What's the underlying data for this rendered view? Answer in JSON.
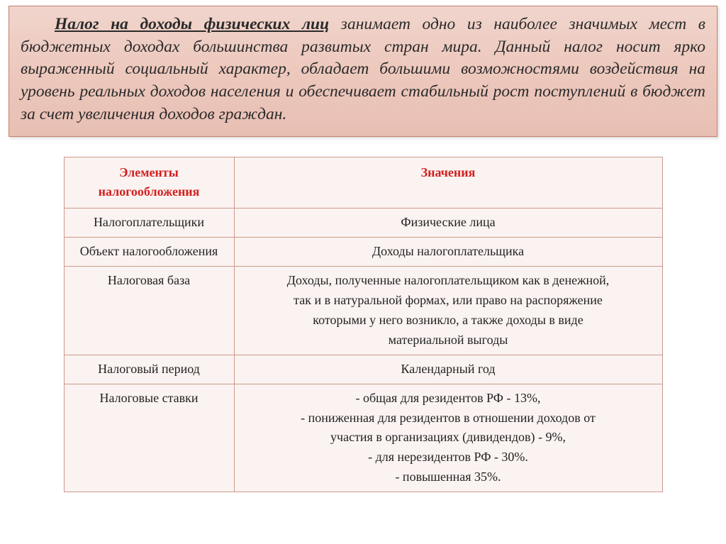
{
  "intro": {
    "lead": "Налог на доходы физических лиц",
    "rest": " занимает одно из наиболее значимых мест в бюджетных доходах большинства развитых стран мира. Данный налог носит ярко выраженный социальный характер, обладает большими возможностями воздействия на уровень реальных доходов населения и обеспечивает стабильный рост поступлений в бюджет за счет увеличения доходов граждан."
  },
  "table": {
    "header_left": "Элементы\nналогообложения",
    "header_right": "Значения",
    "rows": [
      {
        "left": "Налогоплательщики",
        "right": "Физические лица"
      },
      {
        "left": "Объект налогообложения",
        "right": "Доходы налогоплательщика"
      },
      {
        "left": "Налоговая база",
        "right": "Доходы, полученные налогоплательщиком как в денежной,\nтак и в натуральной формах, или право на распоряжение\nкоторыми у него возникло, а также доходы в виде\nматериальной выгоды"
      },
      {
        "left": "Налоговый период",
        "right": "Календарный год"
      },
      {
        "left": "Налоговые ставки",
        "right": "- общая для резидентов РФ - 13%,\n- пониженная для резидентов в отношении доходов от\nучастия в организациях (дивидендов) - 9%,\n- для нерезидентов РФ - 30%.\n- повышенная 35%."
      }
    ]
  },
  "colors": {
    "box_border": "#c97f6e",
    "box_bg_top": "#f0d5cc",
    "box_bg_bottom": "#e8bfb3",
    "header_text": "#d22020",
    "cell_border": "#cc9a8d",
    "cell_bg": "#fbf3f1"
  },
  "fonts": {
    "body": "Times New Roman",
    "intro_size_pt": 18,
    "cell_size_pt": 13.5
  }
}
